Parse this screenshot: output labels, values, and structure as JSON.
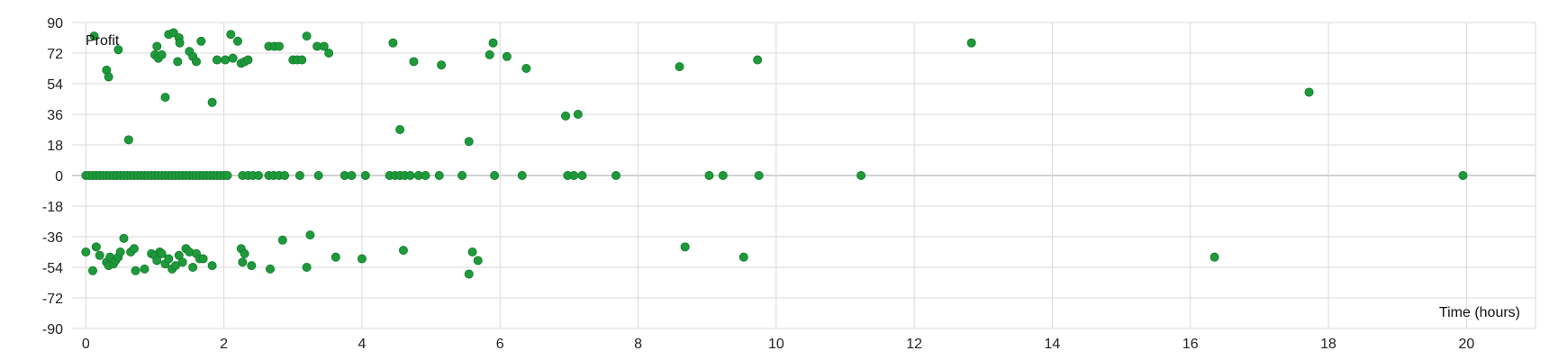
{
  "chart_data": {
    "type": "scatter",
    "title": "",
    "xlabel": "Time (hours)",
    "ylabel": "Profit",
    "xlim": [
      -0.2,
      21
    ],
    "ylim": [
      -90,
      90
    ],
    "x_ticks": [
      0,
      2,
      4,
      6,
      8,
      10,
      12,
      14,
      16,
      18,
      20
    ],
    "y_ticks": [
      90,
      72,
      54,
      36,
      18,
      0,
      -18,
      -36,
      -54,
      -72,
      -90
    ],
    "grid": true,
    "legend": "none",
    "series": [
      {
        "color": "#1e9a3a",
        "points": [
          [
            0.12,
            82
          ],
          [
            0.3,
            62
          ],
          [
            0.33,
            58
          ],
          [
            0.47,
            74
          ],
          [
            0.62,
            21
          ],
          [
            1.0,
            71
          ],
          [
            1.03,
            76
          ],
          [
            1.05,
            69
          ],
          [
            1.1,
            71
          ],
          [
            1.15,
            46
          ],
          [
            1.2,
            83
          ],
          [
            1.27,
            84
          ],
          [
            1.33,
            67
          ],
          [
            1.35,
            81
          ],
          [
            1.36,
            78
          ],
          [
            1.5,
            73
          ],
          [
            1.55,
            70
          ],
          [
            1.6,
            67
          ],
          [
            1.67,
            79
          ],
          [
            1.83,
            43
          ],
          [
            1.9,
            68
          ],
          [
            2.02,
            68
          ],
          [
            2.1,
            83
          ],
          [
            2.13,
            69
          ],
          [
            2.2,
            79
          ],
          [
            2.25,
            66
          ],
          [
            2.3,
            67
          ],
          [
            2.35,
            68
          ],
          [
            2.65,
            76
          ],
          [
            2.73,
            76
          ],
          [
            2.8,
            76
          ],
          [
            3.0,
            68
          ],
          [
            3.06,
            68
          ],
          [
            3.13,
            68
          ],
          [
            3.2,
            82
          ],
          [
            3.35,
            76
          ],
          [
            3.45,
            76
          ],
          [
            3.52,
            72
          ],
          [
            4.45,
            78
          ],
          [
            4.55,
            27
          ],
          [
            4.75,
            67
          ],
          [
            5.15,
            65
          ],
          [
            5.55,
            20
          ],
          [
            5.85,
            71
          ],
          [
            5.9,
            78
          ],
          [
            6.1,
            70
          ],
          [
            6.38,
            63
          ],
          [
            6.95,
            35
          ],
          [
            7.13,
            36
          ],
          [
            8.6,
            64
          ],
          [
            9.73,
            68
          ],
          [
            12.83,
            78
          ],
          [
            17.72,
            49
          ],
          [
            0.0,
            0
          ],
          [
            0.05,
            0
          ],
          [
            0.1,
            0
          ],
          [
            0.15,
            0
          ],
          [
            0.2,
            0
          ],
          [
            0.25,
            0
          ],
          [
            0.3,
            0
          ],
          [
            0.35,
            0
          ],
          [
            0.4,
            0
          ],
          [
            0.45,
            0
          ],
          [
            0.5,
            0
          ],
          [
            0.55,
            0
          ],
          [
            0.6,
            0
          ],
          [
            0.65,
            0
          ],
          [
            0.7,
            0
          ],
          [
            0.75,
            0
          ],
          [
            0.8,
            0
          ],
          [
            0.85,
            0
          ],
          [
            0.9,
            0
          ],
          [
            0.95,
            0
          ],
          [
            1.0,
            0
          ],
          [
            1.05,
            0
          ],
          [
            1.1,
            0
          ],
          [
            1.15,
            0
          ],
          [
            1.2,
            0
          ],
          [
            1.25,
            0
          ],
          [
            1.3,
            0
          ],
          [
            1.35,
            0
          ],
          [
            1.4,
            0
          ],
          [
            1.45,
            0
          ],
          [
            1.5,
            0
          ],
          [
            1.55,
            0
          ],
          [
            1.6,
            0
          ],
          [
            1.65,
            0
          ],
          [
            1.7,
            0
          ],
          [
            1.75,
            0
          ],
          [
            1.8,
            0
          ],
          [
            1.85,
            0
          ],
          [
            1.9,
            0
          ],
          [
            1.95,
            0
          ],
          [
            2.0,
            0
          ],
          [
            2.05,
            0
          ],
          [
            2.27,
            0
          ],
          [
            2.35,
            0
          ],
          [
            2.42,
            0
          ],
          [
            2.5,
            0
          ],
          [
            2.65,
            0
          ],
          [
            2.72,
            0
          ],
          [
            2.8,
            0
          ],
          [
            2.88,
            0
          ],
          [
            3.1,
            0
          ],
          [
            3.37,
            0
          ],
          [
            3.75,
            0
          ],
          [
            3.85,
            0
          ],
          [
            4.05,
            0
          ],
          [
            4.4,
            0
          ],
          [
            4.48,
            0
          ],
          [
            4.55,
            0
          ],
          [
            4.62,
            0
          ],
          [
            4.7,
            0
          ],
          [
            4.82,
            0
          ],
          [
            4.92,
            0
          ],
          [
            5.12,
            0
          ],
          [
            5.45,
            0
          ],
          [
            5.92,
            0
          ],
          [
            6.32,
            0
          ],
          [
            6.98,
            0
          ],
          [
            7.07,
            0
          ],
          [
            7.19,
            0
          ],
          [
            7.68,
            0
          ],
          [
            9.03,
            0
          ],
          [
            9.23,
            0
          ],
          [
            9.75,
            0
          ],
          [
            11.23,
            0
          ],
          [
            19.95,
            0
          ],
          [
            0.0,
            -45
          ],
          [
            0.1,
            -56
          ],
          [
            0.15,
            -42
          ],
          [
            0.2,
            -47
          ],
          [
            0.3,
            -51
          ],
          [
            0.33,
            -53
          ],
          [
            0.35,
            -48
          ],
          [
            0.4,
            -52
          ],
          [
            0.43,
            -50
          ],
          [
            0.47,
            -48
          ],
          [
            0.5,
            -45
          ],
          [
            0.55,
            -37
          ],
          [
            0.65,
            -45
          ],
          [
            0.7,
            -43
          ],
          [
            0.72,
            -56
          ],
          [
            0.85,
            -55
          ],
          [
            0.95,
            -46
          ],
          [
            1.0,
            -47
          ],
          [
            1.03,
            -50
          ],
          [
            1.07,
            -45
          ],
          [
            1.1,
            -46
          ],
          [
            1.15,
            -52
          ],
          [
            1.2,
            -49
          ],
          [
            1.25,
            -55
          ],
          [
            1.3,
            -53
          ],
          [
            1.35,
            -47
          ],
          [
            1.4,
            -51
          ],
          [
            1.45,
            -43
          ],
          [
            1.5,
            -45
          ],
          [
            1.55,
            -54
          ],
          [
            1.6,
            -46
          ],
          [
            1.65,
            -49
          ],
          [
            1.7,
            -49
          ],
          [
            1.83,
            -53
          ],
          [
            2.25,
            -43
          ],
          [
            2.27,
            -51
          ],
          [
            2.3,
            -46
          ],
          [
            2.4,
            -53
          ],
          [
            2.67,
            -55
          ],
          [
            2.85,
            -38
          ],
          [
            3.2,
            -54
          ],
          [
            3.25,
            -35
          ],
          [
            3.62,
            -48
          ],
          [
            4.0,
            -49
          ],
          [
            4.6,
            -44
          ],
          [
            5.55,
            -58
          ],
          [
            5.6,
            -45
          ],
          [
            5.68,
            -50
          ],
          [
            8.68,
            -42
          ],
          [
            9.53,
            -48
          ],
          [
            16.35,
            -48
          ]
        ]
      }
    ]
  }
}
